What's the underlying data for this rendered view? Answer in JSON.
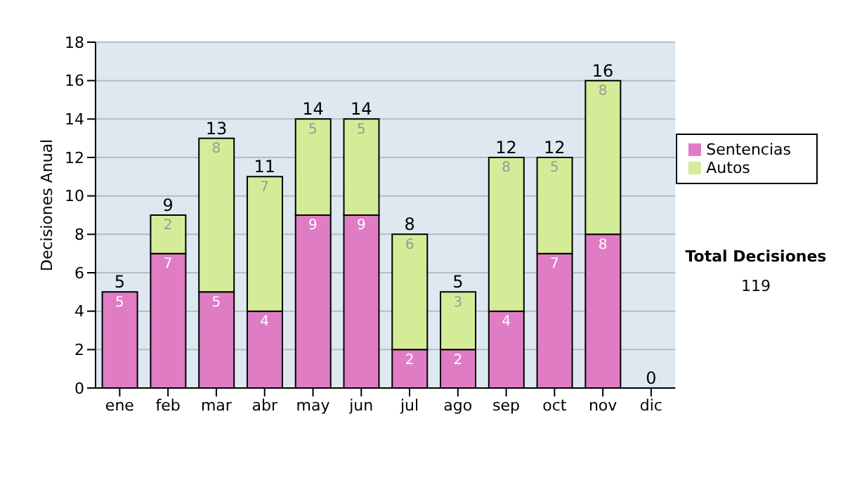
{
  "chart_data": {
    "type": "bar",
    "stacked": true,
    "ylabel": "Decisiones Anual",
    "categories": [
      "ene",
      "feb",
      "mar",
      "abr",
      "may",
      "jun",
      "jul",
      "ago",
      "sep",
      "oct",
      "nov",
      "dic"
    ],
    "series": [
      {
        "name": "Sentencias",
        "color": "#e07cc4",
        "values": [
          5,
          7,
          5,
          4,
          9,
          9,
          2,
          2,
          4,
          7,
          8,
          0
        ],
        "value_labels": [
          "5",
          "7",
          "5",
          "4",
          "9",
          "9",
          "2",
          "2",
          "4",
          "7",
          "8",
          null
        ]
      },
      {
        "name": "Autos",
        "color": "#d4ec98",
        "values": [
          0,
          2,
          8,
          7,
          5,
          5,
          6,
          3,
          8,
          5,
          8,
          0
        ],
        "value_labels": [
          null,
          "2",
          "8",
          "7",
          "5",
          "5",
          "6",
          "3",
          "8",
          "5",
          "8",
          null
        ]
      }
    ],
    "totals": [
      "5",
      "9",
      "13",
      "11",
      "14",
      "14",
      "8",
      "5",
      "12",
      "12",
      "16",
      "0"
    ],
    "ylim": [
      0,
      18
    ],
    "yticks": [
      0,
      2,
      4,
      6,
      8,
      10,
      12,
      14,
      16,
      18
    ],
    "grid": "y",
    "legend": "right",
    "annotations": [
      "Total Decisiones",
      "119"
    ]
  }
}
